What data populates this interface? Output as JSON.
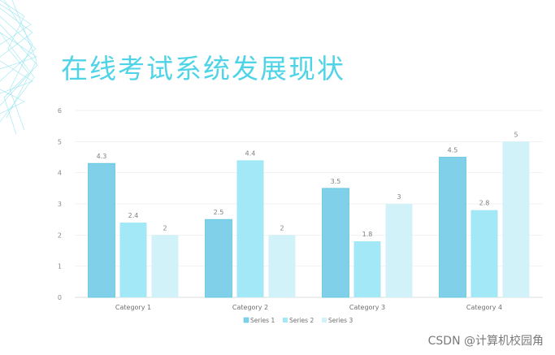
{
  "title": "在线考试系统发展现状",
  "watermark": "CSDN @计算机校园角",
  "chart_data": {
    "type": "bar",
    "categories": [
      "Category 1",
      "Category 2",
      "Category 3",
      "Category 4"
    ],
    "series": [
      {
        "name": "Series 1",
        "values": [
          4.3,
          2.5,
          3.5,
          4.5
        ],
        "color": "#7fd0e8"
      },
      {
        "name": "Series 2",
        "values": [
          2.4,
          4.4,
          1.8,
          2.8
        ],
        "color": "#a3e8f6"
      },
      {
        "name": "Series 3",
        "values": [
          2,
          2,
          3,
          5
        ],
        "color": "#d2f2fa"
      }
    ],
    "ylim": [
      0,
      6
    ],
    "yticks": [
      0,
      1,
      2,
      3,
      4,
      5,
      6
    ],
    "grid": true,
    "legend": "bottom"
  }
}
